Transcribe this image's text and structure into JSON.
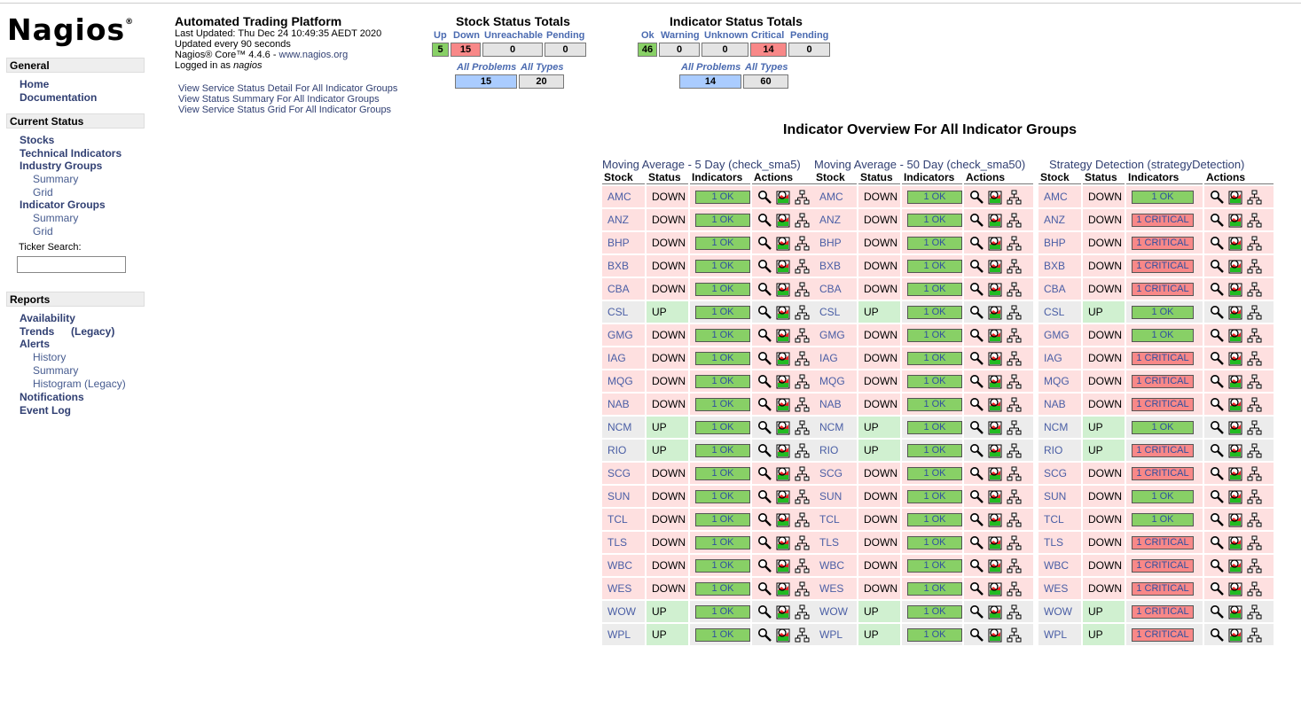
{
  "logo": {
    "text": "Nagios",
    "reg": "®"
  },
  "sidebar": {
    "general": {
      "heading": "General",
      "links": [
        "Home",
        "Documentation"
      ]
    },
    "current_status": {
      "heading": "Current Status",
      "stocks": "Stocks",
      "technical_indicators": "Technical Indicators",
      "industry_groups": "Industry Groups",
      "industry_summary": "Summary",
      "industry_grid": "Grid",
      "indicator_groups": "Indicator Groups",
      "indicator_summary": "Summary",
      "indicator_grid": "Grid",
      "ticker_label": "Ticker Search:",
      "ticker_value": ""
    },
    "reports": {
      "heading": "Reports",
      "availability": "Availability",
      "trends": "Trends",
      "trends_legacy": "(Legacy)",
      "alerts": "Alerts",
      "history": "History",
      "summary": "Summary",
      "histogram": "Histogram (Legacy)",
      "notifications": "Notifications",
      "event_log": "Event Log"
    }
  },
  "info": {
    "title": "Automated Trading Platform",
    "last_updated": "Last Updated: Thu Dec 24 10:49:35 AEDT 2020",
    "updated_every": "Updated every 90 seconds",
    "core": "Nagios® Core™ 4.4.6 - ",
    "core_link": "www.nagios.org",
    "logged_in": "Logged in as ",
    "user": "nagios",
    "links": [
      "View Service Status Detail For All Indicator Groups",
      "View Status Summary For All Indicator Groups",
      "View Service Status Grid For All Indicator Groups"
    ]
  },
  "stock_totals": {
    "title": "Stock Status Totals",
    "labels": [
      "Up",
      "Down",
      "Unreachable",
      "Pending"
    ],
    "values": [
      "5",
      "15",
      "0",
      "0"
    ],
    "sub_labels": [
      "All Problems",
      "All Types"
    ],
    "sub_values": [
      "15",
      "20"
    ]
  },
  "indicator_totals": {
    "title": "Indicator Status Totals",
    "labels": [
      "Ok",
      "Warning",
      "Unknown",
      "Critical",
      "Pending"
    ],
    "values": [
      "46",
      "0",
      "0",
      "14",
      "0"
    ],
    "sub_labels": [
      "All Problems",
      "All Types"
    ],
    "sub_values": [
      "14",
      "60"
    ]
  },
  "overview_title": "Indicator Overview For All Indicator Groups",
  "table_headers": [
    "Stock",
    "Status",
    "Indicators",
    "Actions"
  ],
  "colors": {
    "ok": "#88d066",
    "critical": "#f88888",
    "down_row": "#fee0e0",
    "up_status": "#d0f0d0",
    "problems": "#aaccff"
  },
  "groups": [
    {
      "title": "Moving Average - 5 Day",
      "code": "check_sma5",
      "rows": [
        [
          "AMC",
          "DOWN",
          "1 OK"
        ],
        [
          "ANZ",
          "DOWN",
          "1 OK"
        ],
        [
          "BHP",
          "DOWN",
          "1 OK"
        ],
        [
          "BXB",
          "DOWN",
          "1 OK"
        ],
        [
          "CBA",
          "DOWN",
          "1 OK"
        ],
        [
          "CSL",
          "UP",
          "1 OK"
        ],
        [
          "GMG",
          "DOWN",
          "1 OK"
        ],
        [
          "IAG",
          "DOWN",
          "1 OK"
        ],
        [
          "MQG",
          "DOWN",
          "1 OK"
        ],
        [
          "NAB",
          "DOWN",
          "1 OK"
        ],
        [
          "NCM",
          "UP",
          "1 OK"
        ],
        [
          "RIO",
          "UP",
          "1 OK"
        ],
        [
          "SCG",
          "DOWN",
          "1 OK"
        ],
        [
          "SUN",
          "DOWN",
          "1 OK"
        ],
        [
          "TCL",
          "DOWN",
          "1 OK"
        ],
        [
          "TLS",
          "DOWN",
          "1 OK"
        ],
        [
          "WBC",
          "DOWN",
          "1 OK"
        ],
        [
          "WES",
          "DOWN",
          "1 OK"
        ],
        [
          "WOW",
          "UP",
          "1 OK"
        ],
        [
          "WPL",
          "UP",
          "1 OK"
        ]
      ]
    },
    {
      "title": "Moving Average - 50 Day",
      "code": "check_sma50",
      "rows": [
        [
          "AMC",
          "DOWN",
          "1 OK"
        ],
        [
          "ANZ",
          "DOWN",
          "1 OK"
        ],
        [
          "BHP",
          "DOWN",
          "1 OK"
        ],
        [
          "BXB",
          "DOWN",
          "1 OK"
        ],
        [
          "CBA",
          "DOWN",
          "1 OK"
        ],
        [
          "CSL",
          "UP",
          "1 OK"
        ],
        [
          "GMG",
          "DOWN",
          "1 OK"
        ],
        [
          "IAG",
          "DOWN",
          "1 OK"
        ],
        [
          "MQG",
          "DOWN",
          "1 OK"
        ],
        [
          "NAB",
          "DOWN",
          "1 OK"
        ],
        [
          "NCM",
          "UP",
          "1 OK"
        ],
        [
          "RIO",
          "UP",
          "1 OK"
        ],
        [
          "SCG",
          "DOWN",
          "1 OK"
        ],
        [
          "SUN",
          "DOWN",
          "1 OK"
        ],
        [
          "TCL",
          "DOWN",
          "1 OK"
        ],
        [
          "TLS",
          "DOWN",
          "1 OK"
        ],
        [
          "WBC",
          "DOWN",
          "1 OK"
        ],
        [
          "WES",
          "DOWN",
          "1 OK"
        ],
        [
          "WOW",
          "UP",
          "1 OK"
        ],
        [
          "WPL",
          "UP",
          "1 OK"
        ]
      ]
    },
    {
      "title": "Strategy Detection",
      "code": "strategyDetection",
      "rows": [
        [
          "AMC",
          "DOWN",
          "1 OK"
        ],
        [
          "ANZ",
          "DOWN",
          "1 CRITICAL"
        ],
        [
          "BHP",
          "DOWN",
          "1 CRITICAL"
        ],
        [
          "BXB",
          "DOWN",
          "1 CRITICAL"
        ],
        [
          "CBA",
          "DOWN",
          "1 CRITICAL"
        ],
        [
          "CSL",
          "UP",
          "1 OK"
        ],
        [
          "GMG",
          "DOWN",
          "1 OK"
        ],
        [
          "IAG",
          "DOWN",
          "1 CRITICAL"
        ],
        [
          "MQG",
          "DOWN",
          "1 CRITICAL"
        ],
        [
          "NAB",
          "DOWN",
          "1 CRITICAL"
        ],
        [
          "NCM",
          "UP",
          "1 OK"
        ],
        [
          "RIO",
          "UP",
          "1 CRITICAL"
        ],
        [
          "SCG",
          "DOWN",
          "1 CRITICAL"
        ],
        [
          "SUN",
          "DOWN",
          "1 OK"
        ],
        [
          "TCL",
          "DOWN",
          "1 OK"
        ],
        [
          "TLS",
          "DOWN",
          "1 CRITICAL"
        ],
        [
          "WBC",
          "DOWN",
          "1 CRITICAL"
        ],
        [
          "WES",
          "DOWN",
          "1 CRITICAL"
        ],
        [
          "WOW",
          "UP",
          "1 CRITICAL"
        ],
        [
          "WPL",
          "UP",
          "1 CRITICAL"
        ]
      ]
    }
  ],
  "action_icons": [
    "magnifier-icon",
    "performance-graph-icon",
    "network-map-icon"
  ]
}
